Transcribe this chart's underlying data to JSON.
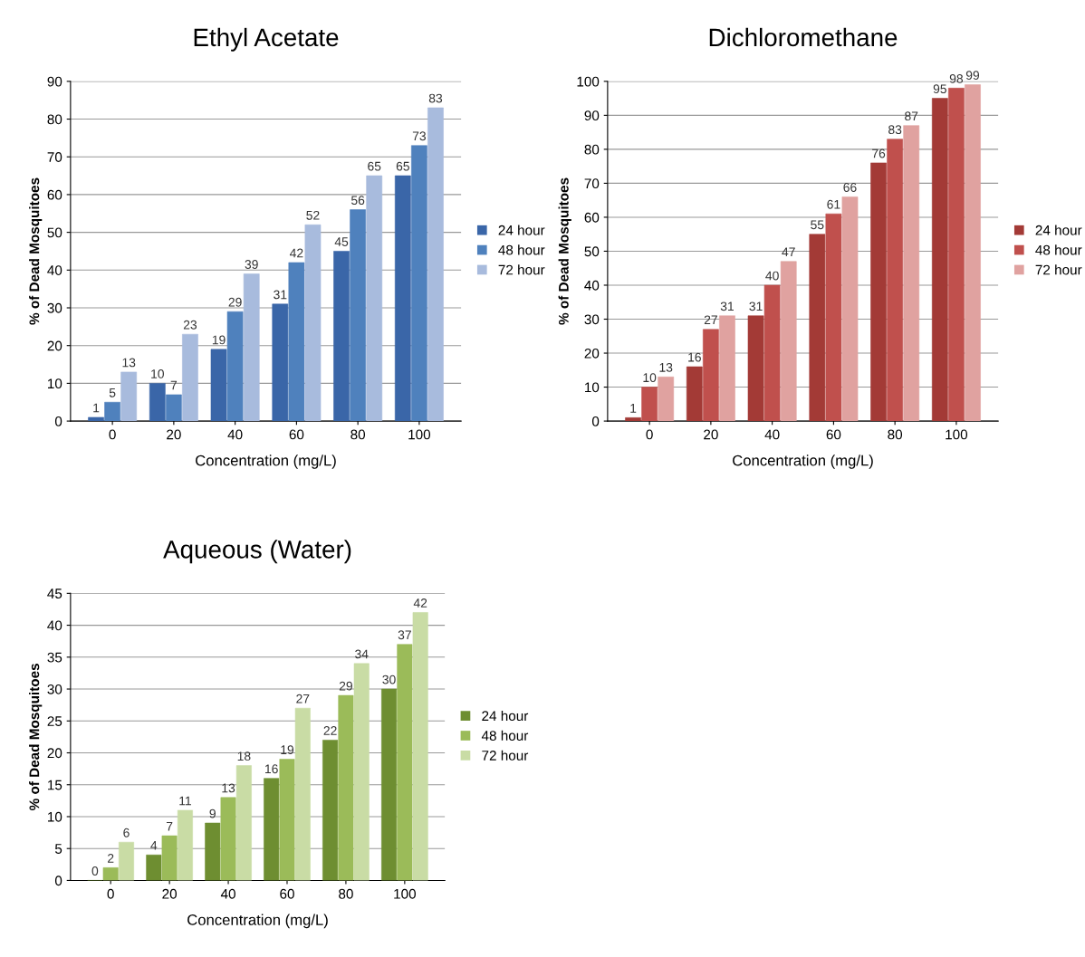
{
  "chart_data": [
    {
      "type": "bar",
      "title": "Ethyl Acetate",
      "xlabel": "Concentration (mg/L)",
      "ylabel": "% of Dead Mosquitoes",
      "categories": [
        "0",
        "20",
        "40",
        "60",
        "80",
        "100"
      ],
      "ylim": [
        0,
        90
      ],
      "yticks": [
        0,
        10,
        20,
        30,
        40,
        50,
        60,
        70,
        80,
        90
      ],
      "grid": "y",
      "legend": "right",
      "data_labels": true,
      "series": [
        {
          "name": "24 hour",
          "color": "#3a66a8",
          "values": [
            1,
            10,
            19,
            31,
            45,
            65
          ]
        },
        {
          "name": "48 hour",
          "color": "#4f81bd",
          "values": [
            5,
            7,
            29,
            42,
            56,
            73
          ]
        },
        {
          "name": "72 hour",
          "color": "#a8bbdd",
          "values": [
            13,
            23,
            39,
            52,
            65,
            83
          ]
        }
      ]
    },
    {
      "type": "bar",
      "title": "Dichloromethane",
      "xlabel": "Concentration (mg/L)",
      "ylabel": "% of Dead Mosquitoes",
      "categories": [
        "0",
        "20",
        "40",
        "60",
        "80",
        "100"
      ],
      "ylim": [
        0,
        100
      ],
      "yticks": [
        0,
        10,
        20,
        30,
        40,
        50,
        60,
        70,
        80,
        90,
        100
      ],
      "grid": "y",
      "legend": "right",
      "data_labels": true,
      "series": [
        {
          "name": "24 hour",
          "color": "#a33a36",
          "values": [
            1,
            16,
            31,
            55,
            76,
            95
          ]
        },
        {
          "name": "48 hour",
          "color": "#c0504d",
          "values": [
            10,
            27,
            40,
            61,
            83,
            98
          ]
        },
        {
          "name": "72 hour",
          "color": "#e0a2a0",
          "values": [
            13,
            31,
            47,
            66,
            87,
            99
          ]
        }
      ]
    },
    {
      "type": "bar",
      "title": "Aqueous (Water)",
      "xlabel": "Concentration (mg/L)",
      "ylabel": "% of Dead Mosquitoes",
      "categories": [
        "0",
        "20",
        "40",
        "60",
        "80",
        "100"
      ],
      "ylim": [
        0,
        45
      ],
      "yticks": [
        0,
        5,
        10,
        15,
        20,
        25,
        30,
        35,
        40,
        45
      ],
      "grid": "y",
      "legend": "right",
      "data_labels": true,
      "series": [
        {
          "name": "24 hour",
          "color": "#6e8e31",
          "values": [
            0,
            4,
            9,
            16,
            22,
            30
          ]
        },
        {
          "name": "48 hour",
          "color": "#9bbb59",
          "values": [
            2,
            7,
            13,
            19,
            29,
            37
          ]
        },
        {
          "name": "72 hour",
          "color": "#c9dca5",
          "values": [
            6,
            11,
            18,
            27,
            34,
            42
          ]
        }
      ]
    }
  ]
}
